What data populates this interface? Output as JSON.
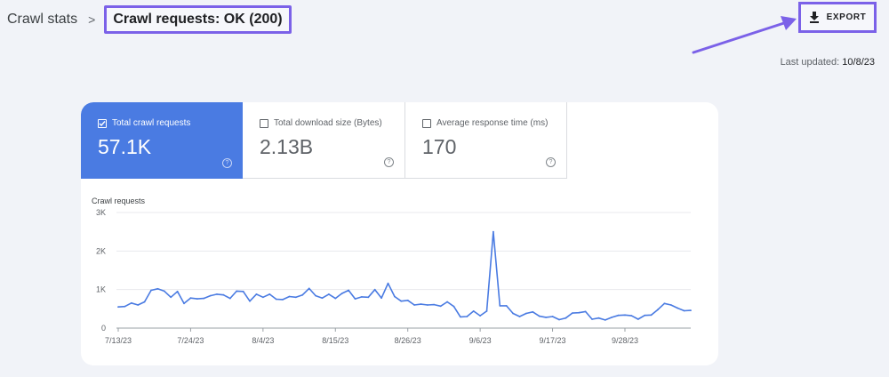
{
  "breadcrumb": {
    "root": "Crawl stats",
    "separator": ">",
    "current": "Crawl requests: OK (200)"
  },
  "toolbar": {
    "export_label": "EXPORT"
  },
  "status": {
    "last_updated_label": "Last updated:",
    "last_updated_value": "10/8/23"
  },
  "metrics": [
    {
      "label": "Total crawl requests",
      "value": "57.1K",
      "checked": true
    },
    {
      "label": "Total download size (Bytes)",
      "value": "2.13B",
      "checked": false
    },
    {
      "label": "Average response time (ms)",
      "value": "170",
      "checked": false
    }
  ],
  "help_glyph": "?",
  "colors": {
    "accent": "#4a7be2",
    "highlight": "#7b61e8",
    "line": "#4a7be2"
  },
  "chart_data": {
    "type": "line",
    "title": "Crawl requests",
    "xlabel": "",
    "ylabel": "",
    "ylim": [
      0,
      3000
    ],
    "y_ticks": [
      0,
      1000,
      2000,
      3000
    ],
    "y_tick_labels": [
      "0",
      "1K",
      "2K",
      "3K"
    ],
    "x_start": "7/13/23",
    "x_tick_labels": [
      "7/13/23",
      "7/24/23",
      "8/4/23",
      "8/15/23",
      "8/26/23",
      "9/6/23",
      "9/17/23",
      "9/28/23"
    ],
    "x_ticks": [
      0,
      11,
      22,
      33,
      44,
      55,
      66,
      77
    ],
    "grid": true,
    "series": [
      {
        "values": [
          550,
          560,
          650,
          600,
          680,
          980,
          1020,
          960,
          800,
          950,
          640,
          780,
          760,
          770,
          840,
          880,
          860,
          770,
          960,
          950,
          700,
          880,
          800,
          880,
          750,
          740,
          820,
          800,
          860,
          1030,
          840,
          780,
          880,
          770,
          900,
          980,
          760,
          810,
          800,
          1000,
          780,
          1160,
          820,
          700,
          720,
          600,
          620,
          600,
          610,
          570,
          680,
          560,
          290,
          300,
          440,
          320,
          440,
          2500,
          580,
          580,
          380,
          300,
          380,
          420,
          310,
          280,
          300,
          220,
          260,
          390,
          400,
          430,
          230,
          260,
          210,
          280,
          330,
          340,
          320,
          230,
          330,
          340,
          480,
          640,
          600,
          520,
          450,
          460
        ]
      }
    ]
  }
}
